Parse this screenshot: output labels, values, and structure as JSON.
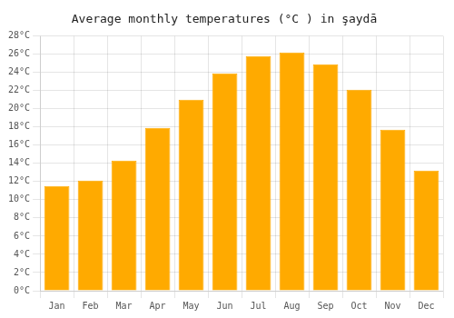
{
  "chart_data": {
    "type": "bar",
    "title": "Average monthly temperatures (°C ) in şaydā",
    "categories": [
      "Jan",
      "Feb",
      "Mar",
      "Apr",
      "May",
      "Jun",
      "Jul",
      "Aug",
      "Sep",
      "Oct",
      "Nov",
      "Dec"
    ],
    "values": [
      11.5,
      12.1,
      14.3,
      17.9,
      21.0,
      23.9,
      25.8,
      26.2,
      24.9,
      22.1,
      17.7,
      13.2
    ],
    "color": "#FFAA00",
    "ylim": [
      0,
      28
    ],
    "yticks": [
      {
        "value": 0,
        "label": "0°C"
      },
      {
        "value": 2,
        "label": "2°C"
      },
      {
        "value": 4,
        "label": "4°C"
      },
      {
        "value": 6,
        "label": "6°C"
      },
      {
        "value": 8,
        "label": "8°C"
      },
      {
        "value": 10,
        "label": "10°C"
      },
      {
        "value": 12,
        "label": "12°C"
      },
      {
        "value": 14,
        "label": "14°C"
      },
      {
        "value": 16,
        "label": "16°C"
      },
      {
        "value": 18,
        "label": "18°C"
      },
      {
        "value": 20,
        "label": "20°C"
      },
      {
        "value": 22,
        "label": "22°C"
      },
      {
        "value": 24,
        "label": "24°C"
      },
      {
        "value": 26,
        "label": "26°C"
      },
      {
        "value": 28,
        "label": "28°C"
      }
    ],
    "grid": true
  }
}
